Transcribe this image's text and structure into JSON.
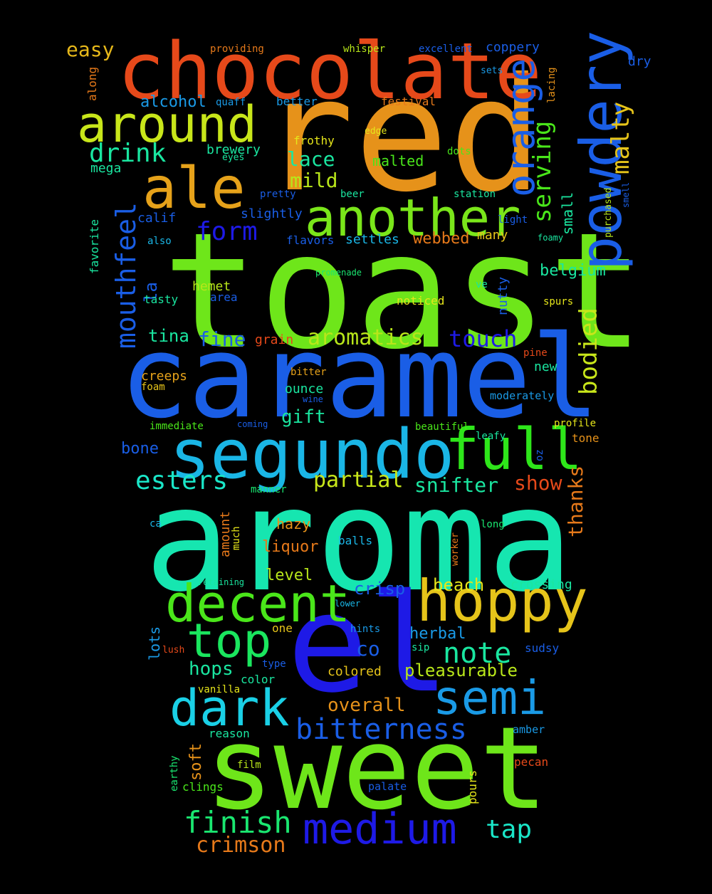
{
  "words": [
    {
      "text": "toast",
      "color": "#6EE61A"
    },
    {
      "text": "aroma",
      "color": "#16E6B0"
    },
    {
      "text": "red",
      "color": "#E6921A"
    },
    {
      "text": "caramel",
      "color": "#1A5EE6"
    },
    {
      "text": "sweet",
      "color": "#6EE61A"
    },
    {
      "text": "el",
      "color": "#1E1AE6"
    },
    {
      "text": "chocolate",
      "color": "#E6491A"
    },
    {
      "text": "segundo",
      "color": "#1AB6E6"
    },
    {
      "text": "hoppy",
      "color": "#E6C41A"
    },
    {
      "text": "decent",
      "color": "#4AE61A"
    },
    {
      "text": "full",
      "color": "#2EE61A"
    },
    {
      "text": "another",
      "color": "#7AE61A"
    },
    {
      "text": "ale",
      "color": "#E6A21A"
    },
    {
      "text": "around",
      "color": "#C8E61A"
    },
    {
      "text": "powdery",
      "color": "#1A5EE6"
    },
    {
      "text": "dark",
      "color": "#1AD0E6"
    },
    {
      "text": "top",
      "color": "#1AE65E"
    },
    {
      "text": "semi",
      "color": "#1A9AE6"
    },
    {
      "text": "medium",
      "color": "#1E1AE6"
    },
    {
      "text": "orange",
      "color": "#1A5EE6"
    },
    {
      "text": "bitterness",
      "color": "#1A5EE6"
    },
    {
      "text": "finish",
      "color": "#1AE670"
    },
    {
      "text": "note",
      "color": "#1AE6A0"
    },
    {
      "text": "mouthfeel",
      "color": "#1A5EE6"
    },
    {
      "text": "serving",
      "color": "#4AE61A"
    },
    {
      "text": "malty",
      "color": "#E6C41A"
    },
    {
      "text": "bodied",
      "color": "#C8E61A"
    },
    {
      "text": "drink",
      "color": "#1AE6A0"
    },
    {
      "text": "form",
      "color": "#1E1AE6"
    },
    {
      "text": "esters",
      "color": "#1AE6C8"
    },
    {
      "text": "tap",
      "color": "#1AE6C8"
    },
    {
      "text": "easy",
      "color": "#E6B81A"
    },
    {
      "text": "aromatics",
      "color": "#B8E61A"
    },
    {
      "text": "snifter",
      "color": "#1AE6A0"
    },
    {
      "text": "crimson",
      "color": "#E6791A"
    },
    {
      "text": "co",
      "color": "#1A5EE6"
    },
    {
      "text": "hops",
      "color": "#1AE6A0"
    },
    {
      "text": "touch",
      "color": "#1E1AE6"
    },
    {
      "text": "partial",
      "color": "#C8E61A"
    },
    {
      "text": "thanks",
      "color": "#E6791A"
    },
    {
      "text": "pleasurable",
      "color": "#B8E61A"
    },
    {
      "text": "fine",
      "color": "#1A5EE6"
    },
    {
      "text": "show",
      "color": "#E6491A"
    },
    {
      "text": "mild",
      "color": "#B8E61A"
    },
    {
      "text": "lace",
      "color": "#1AE6A0"
    },
    {
      "text": "overall",
      "color": "#E6921A"
    },
    {
      "text": "crisp",
      "color": "#1A5EE6"
    },
    {
      "text": "tina",
      "color": "#1AE6A0"
    },
    {
      "text": "beach",
      "color": "#E6E61A"
    },
    {
      "text": "gift",
      "color": "#1AE6A0"
    },
    {
      "text": "belgium",
      "color": "#1AE6A0"
    },
    {
      "text": "alcohol",
      "color": "#1A9AE6"
    },
    {
      "text": "liquor",
      "color": "#E6791A"
    },
    {
      "text": "herbal",
      "color": "#1A9AE6"
    },
    {
      "text": "webbed",
      "color": "#E6791A"
    },
    {
      "text": "level",
      "color": "#B8E61A"
    },
    {
      "text": "soft",
      "color": "#E6921A"
    },
    {
      "text": "small",
      "color": "#1AE6A0"
    },
    {
      "text": "bone",
      "color": "#1A5EE6"
    },
    {
      "text": "la",
      "color": "#1A5EE6"
    },
    {
      "text": "malted",
      "color": "#4AE61A"
    },
    {
      "text": "hazy",
      "color": "#E6921A"
    },
    {
      "text": "lots",
      "color": "#1A9AE6"
    },
    {
      "text": "colored",
      "color": "#E6C41A"
    },
    {
      "text": "settles",
      "color": "#1AB6E6"
    },
    {
      "text": "hemet",
      "color": "#B8E61A"
    },
    {
      "text": "nutty",
      "color": "#1A5EE6"
    },
    {
      "text": "ounce",
      "color": "#1AE6A0"
    },
    {
      "text": "slightly",
      "color": "#1A5EE6"
    },
    {
      "text": "calif",
      "color": "#1A5EE6"
    },
    {
      "text": "brewery",
      "color": "#1AE6A0"
    },
    {
      "text": "creeps",
      "color": "#E6A21A"
    },
    {
      "text": "many",
      "color": "#E6C41A"
    },
    {
      "text": "grain",
      "color": "#E6491A"
    },
    {
      "text": "better",
      "color": "#1A9AE6"
    },
    {
      "text": "coppery",
      "color": "#1A5EE6"
    },
    {
      "text": "festival",
      "color": "#E6791A"
    },
    {
      "text": "new",
      "color": "#1AE6A0"
    },
    {
      "text": "noticed",
      "color": "#E6E61A"
    },
    {
      "text": "amount",
      "color": "#E6791A"
    },
    {
      "text": "crossing",
      "color": "#1AE6A0"
    },
    {
      "text": "flavors",
      "color": "#1A5EE6"
    },
    {
      "text": "mega",
      "color": "#1AE6A0"
    },
    {
      "text": "frothy",
      "color": "#E6E61A"
    },
    {
      "text": "favorite",
      "color": "#1AE6A0"
    },
    {
      "text": "vanilla",
      "color": "#E6E61A"
    },
    {
      "text": "sudsy",
      "color": "#1A5EE6"
    },
    {
      "text": "amber",
      "color": "#1A9AE6"
    },
    {
      "text": "pours",
      "color": "#E6E61A"
    },
    {
      "text": "profile",
      "color": "#E6E61A"
    },
    {
      "text": "reason",
      "color": "#1AE6A0"
    },
    {
      "text": "earthy",
      "color": "#1AE670"
    },
    {
      "text": "pecan",
      "color": "#E6491A"
    },
    {
      "text": "one",
      "color": "#E6C41A"
    },
    {
      "text": "spurs",
      "color": "#E6E61A"
    },
    {
      "text": "moderately",
      "color": "#1A9AE6"
    },
    {
      "text": "palate",
      "color": "#1A5EE6"
    },
    {
      "text": "clings",
      "color": "#4AE61A"
    },
    {
      "text": "much",
      "color": "#E6E61A"
    },
    {
      "text": "color",
      "color": "#1AE6A0"
    },
    {
      "text": "tone",
      "color": "#E6921A"
    },
    {
      "text": "tasty",
      "color": "#1AE6A0"
    },
    {
      "text": "area",
      "color": "#1A5EE6"
    },
    {
      "text": "manner",
      "color": "#1AE670"
    },
    {
      "text": "hints",
      "color": "#1A9AE6"
    },
    {
      "text": "balls",
      "color": "#1AB6E6"
    },
    {
      "text": "whisper",
      "color": "#B8E61A"
    },
    {
      "text": "excellent",
      "color": "#1A5EE6"
    },
    {
      "text": "providing",
      "color": "#E6791A"
    },
    {
      "text": "along",
      "color": "#E6791A"
    },
    {
      "text": "quaff",
      "color": "#1A9AE6"
    },
    {
      "text": "lacing",
      "color": "#E6921A"
    },
    {
      "text": "sets",
      "color": "#1A9AE6"
    },
    {
      "text": "dry",
      "color": "#1A5EE6"
    },
    {
      "text": "film",
      "color": "#B8E61A"
    },
    {
      "text": "immediate",
      "color": "#4AE61A"
    },
    {
      "text": "beautiful",
      "color": "#4AE61A"
    },
    {
      "text": "leafy",
      "color": "#1AE6A0"
    },
    {
      "text": "long",
      "color": "#1AE670"
    },
    {
      "text": "edge",
      "color": "#E6E61A"
    },
    {
      "text": "eyes",
      "color": "#1AE6A0"
    },
    {
      "text": "dots",
      "color": "#4AE61A"
    },
    {
      "text": "pretty",
      "color": "#1A5EE6"
    },
    {
      "text": "beer",
      "color": "#1AE6A0"
    },
    {
      "text": "station",
      "color": "#1AE6A0"
    },
    {
      "text": "light",
      "color": "#1A5EE6"
    },
    {
      "text": "foamy",
      "color": "#1AE6A0"
    },
    {
      "text": "purchased",
      "color": "#B8E61A"
    },
    {
      "text": "smell",
      "color": "#1A5EE6"
    },
    {
      "text": "also",
      "color": "#1AB6E6"
    },
    {
      "text": "promenade",
      "color": "#1AE670"
    },
    {
      "text": "ve",
      "color": "#1AE6A0"
    },
    {
      "text": "pine",
      "color": "#E6491A"
    },
    {
      "text": "bitter",
      "color": "#E6A21A"
    },
    {
      "text": "foam",
      "color": "#E6C41A"
    },
    {
      "text": "wine",
      "color": "#1A5EE6"
    },
    {
      "text": "coming",
      "color": "#1A5EE6"
    },
    {
      "text": "oz",
      "color": "#1A5EE6"
    },
    {
      "text": "ca",
      "color": "#1AB6E6"
    },
    {
      "text": "worker",
      "color": "#E6791A"
    },
    {
      "text": "retaining",
      "color": "#1AE6A0"
    },
    {
      "text": "lower",
      "color": "#1AB6E6"
    },
    {
      "text": "lush",
      "color": "#E6491A"
    },
    {
      "text": "type",
      "color": "#1A5EE6"
    },
    {
      "text": "sip",
      "color": "#1AE6A0"
    }
  ]
}
